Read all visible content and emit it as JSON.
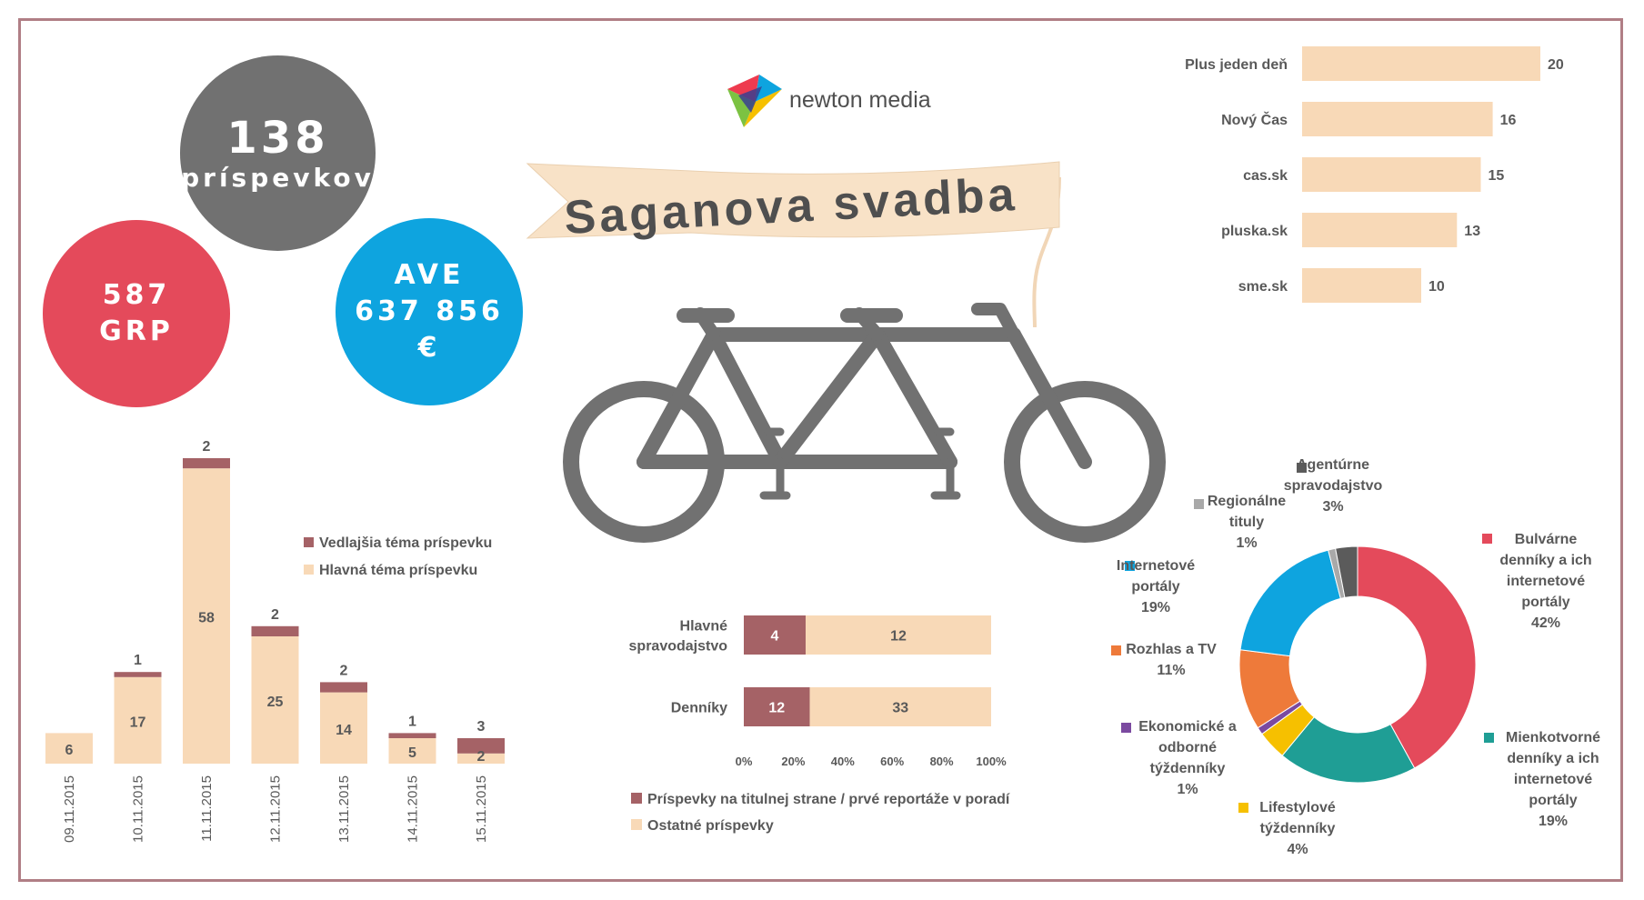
{
  "stats": {
    "posts_count": "138",
    "posts_label": "príspevkov",
    "grp_value": "587",
    "grp_label": "GRP",
    "ave_label": "AVE",
    "ave_value": "637 856",
    "ave_currency": "€"
  },
  "brand": {
    "name": "newton media"
  },
  "banner": {
    "title": "Saganova svadba"
  },
  "colors": {
    "light": "#f8d9b7",
    "dark": "#a56266",
    "grey": "#717171",
    "red": "#e44a5b",
    "blue": "#0ea4df"
  },
  "chart_data": [
    {
      "id": "daily",
      "type": "bar",
      "stacked": true,
      "categories": [
        "09.11.2015",
        "10.11.2015",
        "11.11.2015",
        "12.11.2015",
        "13.11.2015",
        "14.11.2015",
        "15.11.2015"
      ],
      "series": [
        {
          "name": "Hlavná téma príspevku",
          "values": [
            6,
            17,
            58,
            25,
            14,
            5,
            2
          ],
          "color": "#f8d9b7"
        },
        {
          "name": "Vedlajšia téma príspevku",
          "values": [
            0,
            1,
            2,
            2,
            2,
            1,
            3
          ],
          "color": "#a56266"
        }
      ],
      "top_labels": [
        "",
        "1",
        "2",
        "2",
        "2",
        "1",
        "3"
      ],
      "legend": [
        "Vedlajšia téma príspevku",
        "Hlavná téma príspevku"
      ]
    },
    {
      "id": "media",
      "type": "bar",
      "orientation": "horizontal",
      "categories": [
        "Plus jeden deň",
        "Nový Čas",
        "cas.sk",
        "pluska.sk",
        "sme.sk"
      ],
      "values": [
        20,
        16,
        15,
        13,
        10
      ],
      "color": "#f8d9b7"
    },
    {
      "id": "front",
      "type": "bar",
      "orientation": "horizontal",
      "stacked_percent": true,
      "categories": [
        "Hlavné spravodajstvo",
        "Denníky"
      ],
      "category_lines": [
        [
          "Hlavné",
          "spravodajstvo"
        ],
        [
          "Denníky"
        ]
      ],
      "series": [
        {
          "name": "Príspevky na titulnej strane / prvé reportáže v poradí",
          "values": [
            4,
            12
          ],
          "color": "#a56266"
        },
        {
          "name": "Ostatné príspevky",
          "values": [
            12,
            33
          ],
          "color": "#f8d9b7"
        }
      ],
      "xticks": [
        "0%",
        "20%",
        "40%",
        "60%",
        "80%",
        "100%"
      ]
    },
    {
      "id": "types",
      "type": "pie",
      "donut": true,
      "slices": [
        {
          "label": "Bulvárne denníky a ich internetové portály",
          "lines": [
            "Bulvárne",
            "denníky a ich",
            "internetové",
            "portály"
          ],
          "pct": "42%",
          "value": 42,
          "color": "#e44a5b"
        },
        {
          "label": "Mienkotvorné denníky a ich internetové portály",
          "lines": [
            "Mienkotvorné",
            "denníky a ich",
            "internetové",
            "portály"
          ],
          "pct": "19%",
          "value": 19,
          "color": "#1f9e95"
        },
        {
          "label": "Lifestylové týždenníky",
          "lines": [
            "Lifestylové",
            "týždenníky"
          ],
          "pct": "4%",
          "value": 4,
          "color": "#f6c000"
        },
        {
          "label": "Ekonomické a odborné týždenníky",
          "lines": [
            "Ekonomické a",
            "odborné",
            "týždenníky"
          ],
          "pct": "1%",
          "value": 1,
          "color": "#7b4aa0"
        },
        {
          "label": "Rozhlas a TV",
          "lines": [
            "Rozhlas a TV"
          ],
          "pct": "11%",
          "value": 11,
          "color": "#ee7a3a"
        },
        {
          "label": "Internetové portály",
          "lines": [
            "Internetové",
            "portály"
          ],
          "pct": "19%",
          "value": 19,
          "color": "#0ea4df"
        },
        {
          "label": "Regionálne tituly",
          "lines": [
            "Regionálne",
            "tituly"
          ],
          "pct": "1%",
          "value": 1,
          "color": "#a9a9a9"
        },
        {
          "label": "Agentúrne spravodajstvo",
          "lines": [
            "Agentúrne",
            "spravodajstvo"
          ],
          "pct": "3%",
          "value": 3,
          "color": "#5b5b5b"
        }
      ]
    }
  ]
}
